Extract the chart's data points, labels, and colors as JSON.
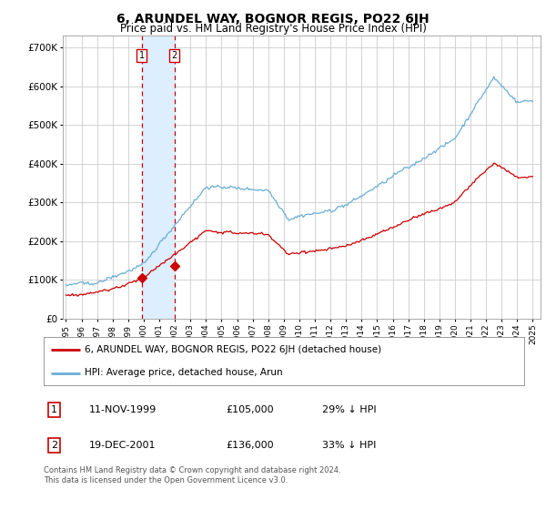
{
  "title": "6, ARUNDEL WAY, BOGNOR REGIS, PO22 6JH",
  "subtitle": "Price paid vs. HM Land Registry's House Price Index (HPI)",
  "ylabel_ticks": [
    "£0",
    "£100K",
    "£200K",
    "£300K",
    "£400K",
    "£500K",
    "£600K",
    "£700K"
  ],
  "ytick_values": [
    0,
    100000,
    200000,
    300000,
    400000,
    500000,
    600000,
    700000
  ],
  "ylim": [
    0,
    730000
  ],
  "xlim_start": 1994.8,
  "xlim_end": 2025.5,
  "hpi_color": "#6baed6",
  "price_color": "#cc0000",
  "bg_color": "#ffffff",
  "grid_color": "#cccccc",
  "sale1_date": 1999.87,
  "sale1_price": 105000,
  "sale2_date": 2001.97,
  "sale2_price": 136000,
  "legend_line1": "6, ARUNDEL WAY, BOGNOR REGIS, PO22 6JH (detached house)",
  "legend_line2": "HPI: Average price, detached house, Arun",
  "table_row1_num": "1",
  "table_row1_date": "11-NOV-1999",
  "table_row1_price": "£105,000",
  "table_row1_hpi": "29% ↓ HPI",
  "table_row2_num": "2",
  "table_row2_date": "19-DEC-2001",
  "table_row2_price": "£136,000",
  "table_row2_hpi": "33% ↓ HPI",
  "footnote": "Contains HM Land Registry data © Crown copyright and database right 2024.\nThis data is licensed under the Open Government Licence v3.0.",
  "highlight_color": "#ddeeff",
  "highlight_border": "#cc0000",
  "hpi_seed": 42,
  "price_seed": 123
}
